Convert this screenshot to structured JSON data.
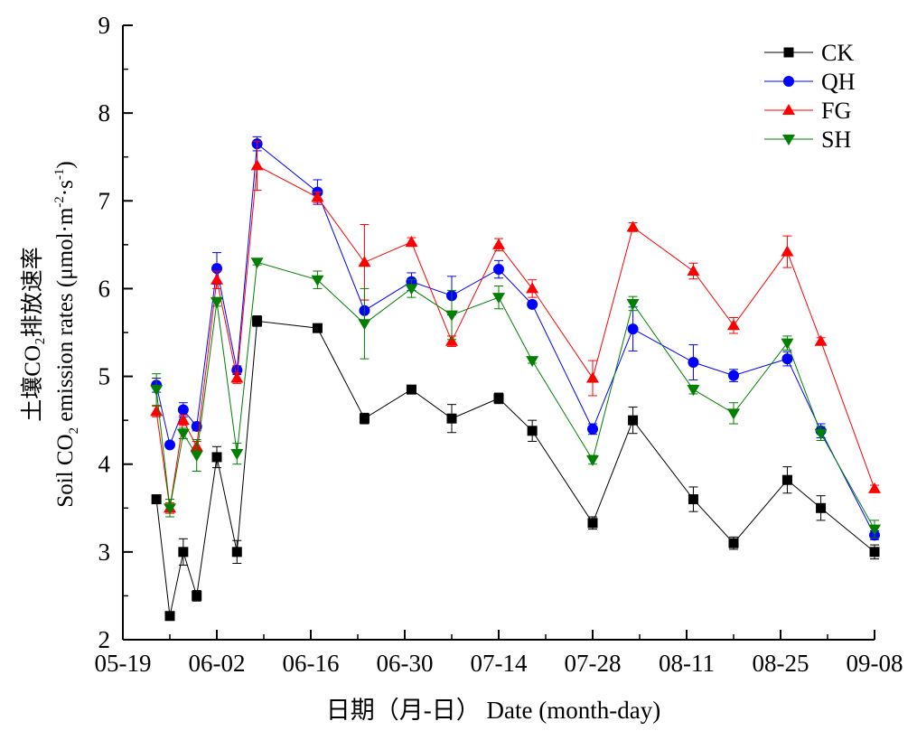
{
  "chart_data": {
    "type": "line",
    "xlabel": "日期（月-日） Date (month-day)",
    "ylabel_cn": "土壤CO₂排放速率",
    "ylabel_en_pre": "Soil CO",
    "ylabel_en_sub2": "2",
    "ylabel_en_mid": " emission rates (μmol·m",
    "ylabel_en_sup1": "-2",
    "ylabel_en_mid2": "·s",
    "ylabel_en_sup2": "-1",
    "ylabel_en_post": ")",
    "ylim": [
      2,
      9
    ],
    "yticks": [
      2,
      3,
      4,
      5,
      6,
      7,
      8,
      9
    ],
    "xlim": [
      "2015-05-19",
      "2015-09-08"
    ],
    "xticks": [
      {
        "date": "2015-05-19",
        "label": "05-19"
      },
      {
        "date": "2015-06-02",
        "label": "06-02"
      },
      {
        "date": "2015-06-16",
        "label": "06-16"
      },
      {
        "date": "2015-06-30",
        "label": "06-30"
      },
      {
        "date": "2015-07-14",
        "label": "07-14"
      },
      {
        "date": "2015-07-28",
        "label": "07-28"
      },
      {
        "date": "2015-08-11",
        "label": "08-11"
      },
      {
        "date": "2015-08-25",
        "label": "08-25"
      },
      {
        "date": "2015-09-08",
        "label": "09-08"
      }
    ],
    "x": [
      "2015-05-24",
      "2015-05-26",
      "2015-05-28",
      "2015-05-30",
      "2015-06-02",
      "2015-06-05",
      "2015-06-08",
      "2015-06-17",
      "2015-06-24",
      "2015-07-01",
      "2015-07-07",
      "2015-07-14",
      "2015-07-19",
      "2015-07-28",
      "2015-08-03",
      "2015-08-12",
      "2015-08-18",
      "2015-08-26",
      "2015-08-31",
      "2015-09-08"
    ],
    "legend_position": "top-right",
    "grid": false,
    "series": [
      {
        "name": "CK",
        "color": "#000000",
        "marker": "square",
        "values": [
          3.6,
          2.27,
          3.0,
          2.5,
          4.08,
          3.0,
          5.63,
          5.55,
          4.52,
          4.85,
          4.52,
          4.75,
          4.38,
          3.33,
          4.5,
          3.6,
          3.1,
          3.82,
          3.5,
          3.0
        ],
        "errors": [
          0.05,
          0.04,
          0.15,
          0.06,
          0.12,
          0.13,
          0.06,
          0.03,
          0.06,
          0.04,
          0.16,
          0.06,
          0.12,
          0.07,
          0.15,
          0.14,
          0.07,
          0.15,
          0.14,
          0.08
        ]
      },
      {
        "name": "QH",
        "color": "#0000ff",
        "marker": "circle",
        "values": [
          4.9,
          4.22,
          4.62,
          4.43,
          6.23,
          5.07,
          7.65,
          7.1,
          5.75,
          6.08,
          5.92,
          6.22,
          5.82,
          4.4,
          5.54,
          5.16,
          5.01,
          5.2,
          4.38,
          3.19
        ],
        "errors": [
          0.08,
          0.03,
          0.08,
          0.05,
          0.18,
          0.05,
          0.08,
          0.14,
          0.12,
          0.1,
          0.22,
          0.1,
          0.03,
          0.06,
          0.25,
          0.2,
          0.07,
          0.08,
          0.08,
          0.05
        ]
      },
      {
        "name": "FG",
        "color": "#ff0000",
        "marker": "triangle-up",
        "values": [
          4.6,
          3.5,
          4.5,
          4.2,
          6.1,
          4.98,
          7.4,
          7.04,
          6.3,
          6.53,
          5.4,
          6.5,
          6.0,
          4.98,
          6.7,
          6.2,
          5.58,
          6.42,
          5.4,
          3.72
        ],
        "errors": [
          0.06,
          0.06,
          0.06,
          0.06,
          0.1,
          0.06,
          0.28,
          0.06,
          0.43,
          0.05,
          0.06,
          0.07,
          0.1,
          0.2,
          0.05,
          0.09,
          0.09,
          0.18,
          0.04,
          0.04
        ]
      },
      {
        "name": "SH",
        "color": "#008000",
        "marker": "triangle-down",
        "values": [
          4.85,
          3.5,
          4.35,
          4.1,
          5.85,
          4.12,
          6.3,
          6.1,
          5.6,
          6.0,
          5.7,
          5.9,
          5.18,
          4.05,
          5.83,
          4.85,
          4.58,
          5.38,
          4.35,
          3.26
        ],
        "errors": [
          0.18,
          0.1,
          0.06,
          0.18,
          0.05,
          0.12,
          0.03,
          0.1,
          0.4,
          0.1,
          0.28,
          0.13,
          0.03,
          0.05,
          0.08,
          0.05,
          0.12,
          0.08,
          0.08,
          0.1
        ]
      }
    ]
  }
}
